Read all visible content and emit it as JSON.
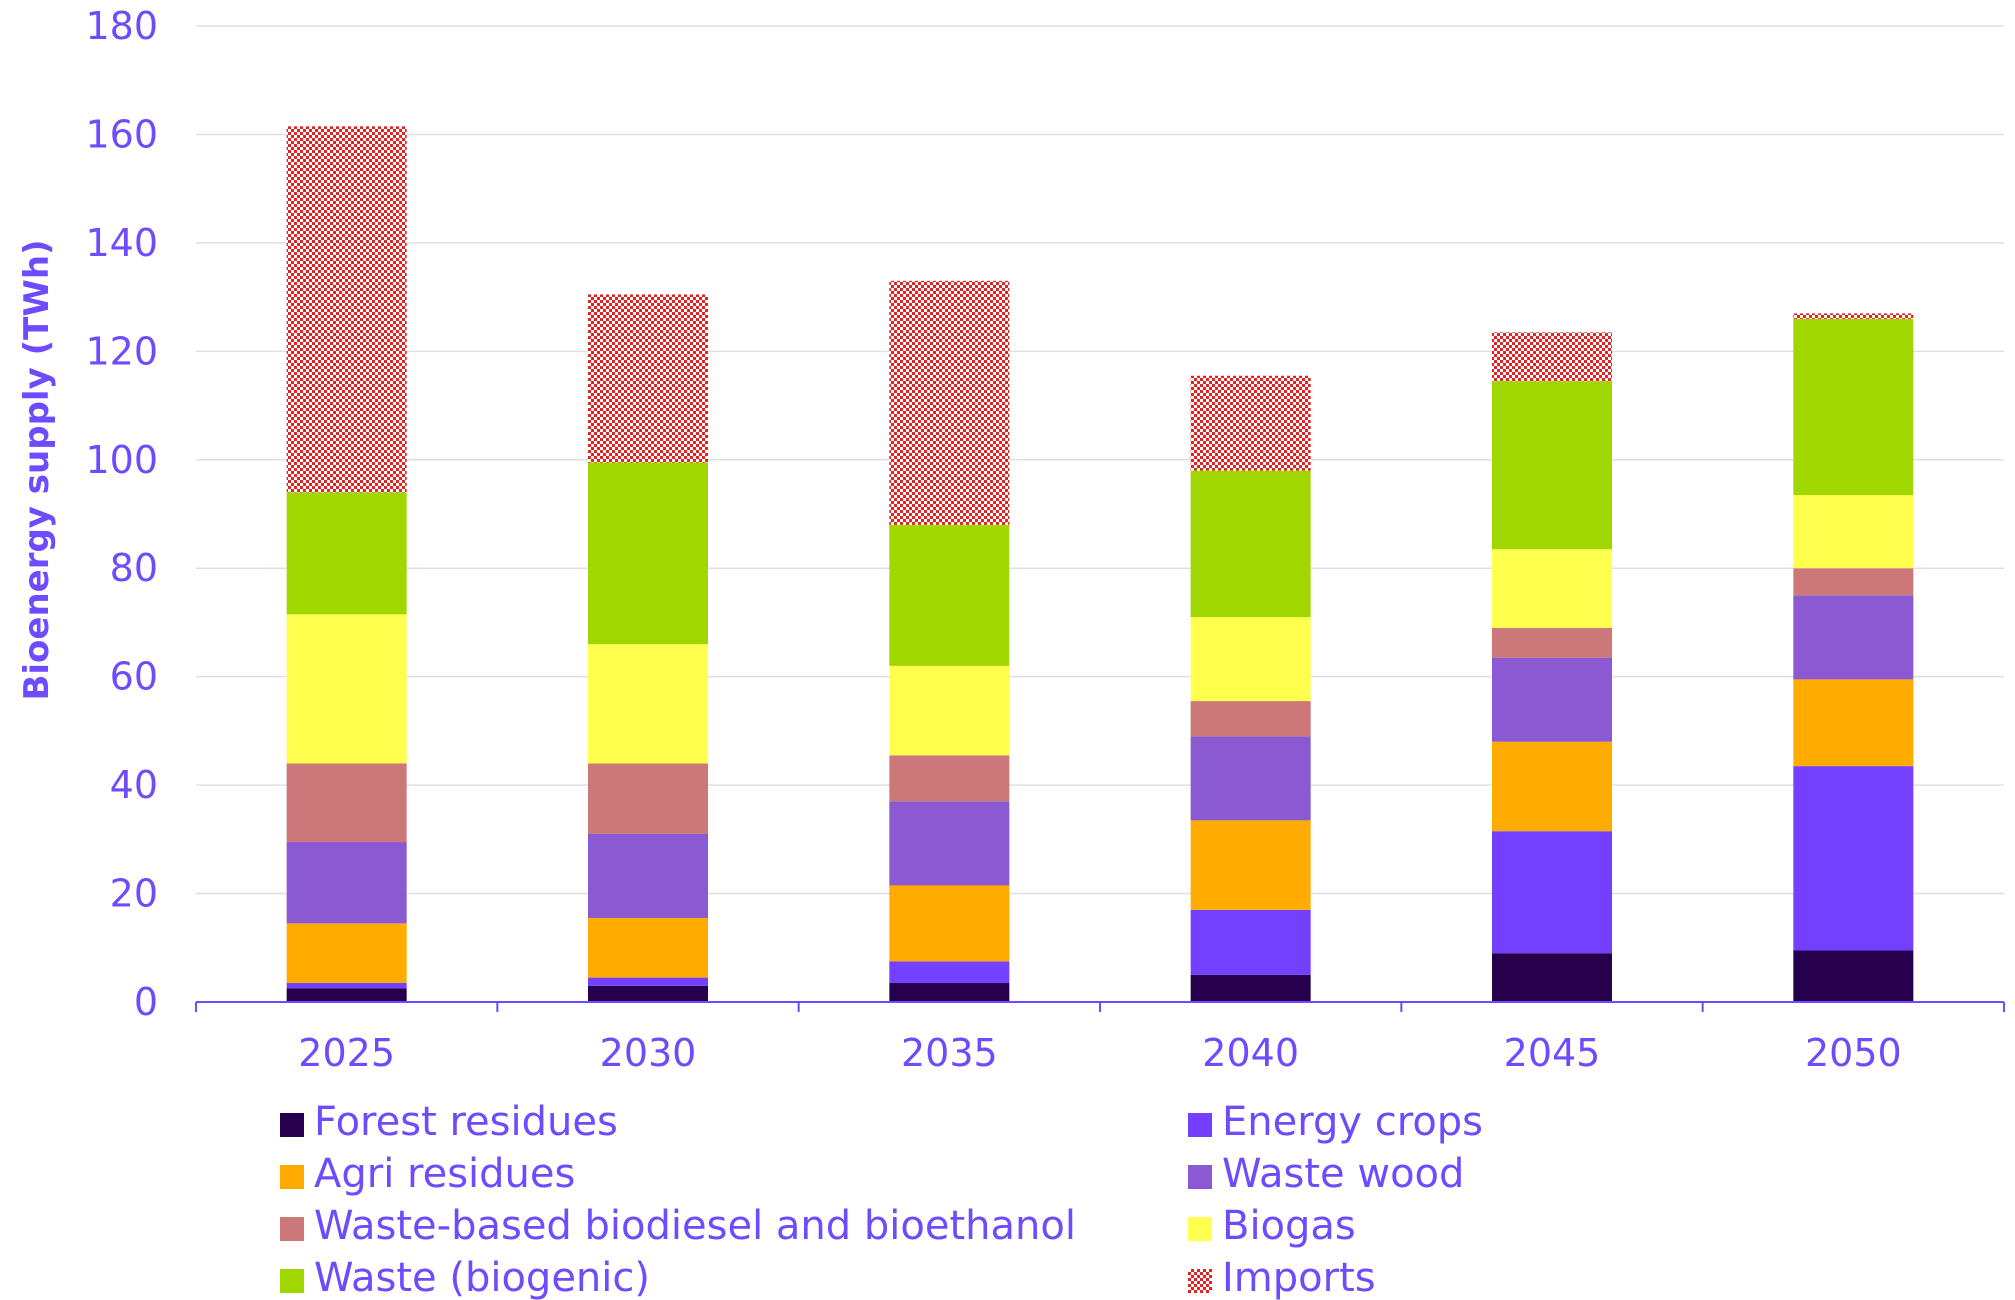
{
  "chart_data": {
    "type": "bar",
    "stacked": true,
    "title": "",
    "xlabel": "",
    "ylabel": "Bioenergy supply (TWh)",
    "ylim": [
      0,
      180
    ],
    "yticks": [
      0,
      20,
      40,
      60,
      80,
      100,
      120,
      140,
      160,
      180
    ],
    "grid": true,
    "legend_position": "bottom",
    "categories": [
      "2025",
      "2030",
      "2035",
      "2040",
      "2045",
      "2050"
    ],
    "series": [
      {
        "name": "Forest residues",
        "color": "#26004d",
        "values": [
          2.5,
          3,
          3.5,
          5,
          9,
          9.5
        ]
      },
      {
        "name": "Energy crops",
        "color": "#7340ff",
        "values": [
          1,
          1.5,
          4,
          12,
          22.5,
          34
        ]
      },
      {
        "name": "Agri residues",
        "color": "#ffab00",
        "values": [
          11,
          11,
          14,
          16.5,
          16.5,
          16
        ]
      },
      {
        "name": "Waste wood",
        "color": "#8b59d1",
        "values": [
          15,
          15.5,
          15.5,
          15.5,
          15.5,
          15.5
        ]
      },
      {
        "name": "Waste-based biodiesel and bioethanol",
        "color": "#cc7878",
        "values": [
          14.5,
          13,
          8.5,
          6.5,
          5.5,
          5
        ]
      },
      {
        "name": "Biogas",
        "color": "#ffff4d",
        "values": [
          27.5,
          22,
          16.5,
          15.5,
          14.5,
          13.5
        ]
      },
      {
        "name": "Waste (biogenic)",
        "color": "#a0d700",
        "values": [
          22.5,
          33.5,
          26,
          27,
          31,
          32.5
        ]
      },
      {
        "name": "Imports",
        "color": "#e82020",
        "pattern": "checker",
        "values": [
          67.5,
          31,
          45,
          17.5,
          9,
          1
        ]
      }
    ],
    "axis_color": "#6f4bff",
    "grid_color": "#e0e0e0"
  }
}
